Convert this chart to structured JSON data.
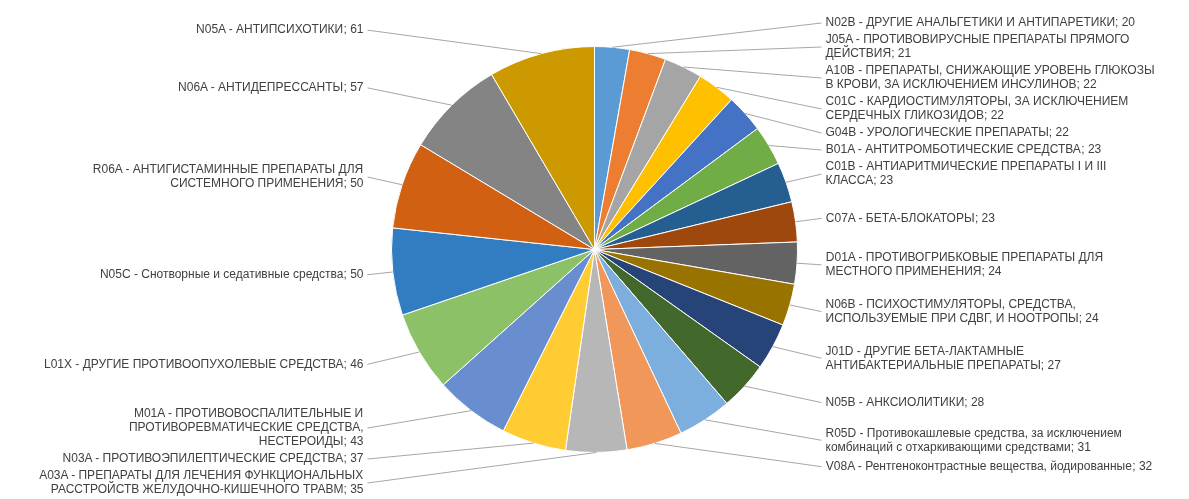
{
  "chart_data": {
    "type": "pie",
    "categories": [
      "N02B - ДРУГИЕ АНАЛЬГЕТИКИ И АНТИПАРЕТИКИ",
      "J05A - ПРОТИВОВИРУСНЫЕ ПРЕПАРАТЫ ПРЯМОГО ДЕЙСТВИЯ",
      "A10B - ПРЕПАРАТЫ, СНИЖАЮЩИЕ УРОВЕНЬ ГЛЮКОЗЫ В КРОВИ, ЗА ИСКЛЮЧЕНИЕМ ИНСУЛИНОВ",
      "C01C - КАРДИОСТИМУЛЯТОРЫ, ЗА ИСКЛЮЧЕНИЕМ СЕРДЕЧНЫХ ГЛИКОЗИДОВ",
      "G04B - УРОЛОГИЧЕСКИЕ ПРЕПАРАТЫ",
      "B01A - АНТИТРОМБОТИЧЕСКИЕ СРЕДСТВА",
      "C01B - АНТИАРИТМИЧЕСКИЕ ПРЕПАРАТЫ I И III КЛАССА",
      "C07A - БЕТА-БЛОКАТОРЫ",
      "D01A - ПРОТИВОГРИБКОВЫЕ ПРЕПАРАТЫ ДЛЯ МЕСТНОГО ПРИМЕНЕНИЯ",
      "N06B - ПСИХОСТИМУЛЯТОРЫ, СРЕДСТВА, ИСПОЛЬЗУЕМЫЕ ПРИ СДВГ, И НООТРОПЫ",
      "J01D - ДРУГИЕ БЕТА-ЛАКТАМНЫЕ АНТИБАКТЕРИАЛЬНЫЕ ПРЕПАРАТЫ",
      "N05B - АНКСИОЛИТИКИ",
      "R05D - Противокашлевые средства, за исключением комбинаций с отхаркивающими средствами",
      "V08A - Рентгеноконтрастные вещества, йодированные",
      "A03A - ПРЕПАРАТЫ ДЛЯ ЛЕЧЕНИЯ ФУНКЦИОНАЛЬНЫХ РАССТРОЙСТВ ЖЕЛУДОЧНО-КИШЕЧНОГО ТРАВМ",
      "N03A - ПРОТИВОЭПИЛЕПТИЧЕСКИЕ СРЕДСТВА",
      "M01A - ПРОТИВОВОСПАЛИТЕЛЬНЫЕ И ПРОТИВОРЕВМАТИЧЕСКИЕ СРЕДСТВА, НЕСТЕРОИДЫ",
      "L01X - ДРУГИЕ ПРОТИВООПУХОЛЕВЫЕ СРЕДСТВА",
      "N05C - Снотворные и седативные средства",
      "R06A - АНТИГИСТАМИННЫЕ ПРЕПАРАТЫ ДЛЯ СИСТЕМНОГО ПРИМЕНЕНИЯ",
      "N06A - АНТИДЕПРЕССАНТЫ",
      "N05A - АНТИПСИХОТИКИ"
    ],
    "values": [
      20,
      21,
      22,
      22,
      22,
      23,
      23,
      23,
      24,
      24,
      27,
      28,
      31,
      32,
      35,
      37,
      43,
      46,
      50,
      50,
      57,
      61
    ],
    "value_labels": [
      "; 20",
      "; 21",
      "; 22",
      "; 22",
      "; 22",
      "; 23",
      "; 23",
      "; 23",
      "; 24",
      "; 24",
      "; 27",
      "; 28",
      "; 31",
      "; 32",
      "; 35",
      "; 37",
      "; 43",
      "; 46",
      "; 50",
      "; 50",
      "; 57",
      "; 61"
    ],
    "colors": [
      "#5b9bd5",
      "#ed7d31",
      "#a5a5a5",
      "#ffc000",
      "#4472c4",
      "#70ad47",
      "#255e91",
      "#9e480e",
      "#636363",
      "#997300",
      "#264478",
      "#43682b",
      "#7cafdd",
      "#f1975a",
      "#b7b7b7",
      "#ffcd33",
      "#698ed0",
      "#8cc168",
      "#327dc2",
      "#d26012",
      "#848484",
      "#cc9a00"
    ],
    "legend": false
  }
}
